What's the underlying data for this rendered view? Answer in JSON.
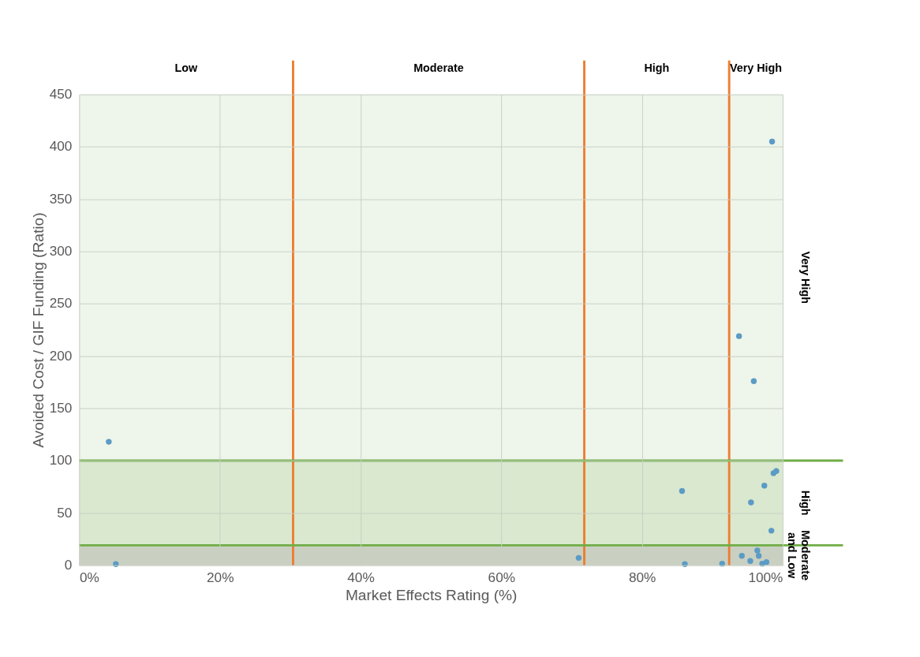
{
  "chart_data": {
    "type": "scatter",
    "xlabel": "Market Effects Rating (%)",
    "ylabel": "Avoided Cost / GIF Funding (Ratio)",
    "x": [
      4.2,
      5.2,
      71.0,
      85.7,
      86.1,
      91.4,
      93.8,
      94.2,
      95.4,
      95.5,
      95.9,
      96.4,
      96.6,
      97.1,
      97.4,
      97.7,
      98.4,
      98.5,
      98.7,
      99.1
    ],
    "series": [
      {
        "color": "#5b9bc5",
        "values": [
          118,
          1,
          7,
          71,
          1,
          1.5,
          219,
          9,
          4,
          60,
          176,
          14,
          9,
          1.5,
          76,
          3,
          33,
          405,
          88,
          90
        ]
      }
    ],
    "xlim": [
      0,
      100
    ],
    "ylim": [
      0,
      450
    ],
    "xticks": [
      {
        "value": 0,
        "label": "0%"
      },
      {
        "value": 20,
        "label": "20%"
      },
      {
        "value": 40,
        "label": "40%"
      },
      {
        "value": 60,
        "label": "60%"
      },
      {
        "value": 80,
        "label": "80%"
      },
      {
        "value": 100,
        "label": "100%"
      }
    ],
    "yticks": [
      0,
      50,
      100,
      150,
      200,
      250,
      300,
      350,
      400,
      450
    ],
    "grid": true,
    "marker": "circle",
    "bands": [
      {
        "axis": "y",
        "from": 100,
        "to": 450,
        "label": "Very High",
        "color": "#eef5ea"
      },
      {
        "axis": "y",
        "from": 19,
        "to": 100,
        "label": "High",
        "color": "#d9e8cf"
      },
      {
        "axis": "y",
        "from": 0,
        "to": 19,
        "label": "Moderate and Low",
        "color": "#c9d0c2"
      }
    ],
    "annotations": [
      "Low",
      "Moderate",
      "High",
      "Very High"
    ],
    "ref_lines": [
      {
        "axis": "x",
        "value": 30.4,
        "color": "#ed7d31"
      },
      {
        "axis": "x",
        "value": 71.8,
        "color": "#ed7d31"
      },
      {
        "axis": "x",
        "value": 92.4,
        "color": "#ed7d31"
      },
      {
        "axis": "y",
        "value": 100,
        "color": "#70ad47"
      },
      {
        "axis": "y",
        "value": 19,
        "color": "#70ad47"
      }
    ]
  }
}
